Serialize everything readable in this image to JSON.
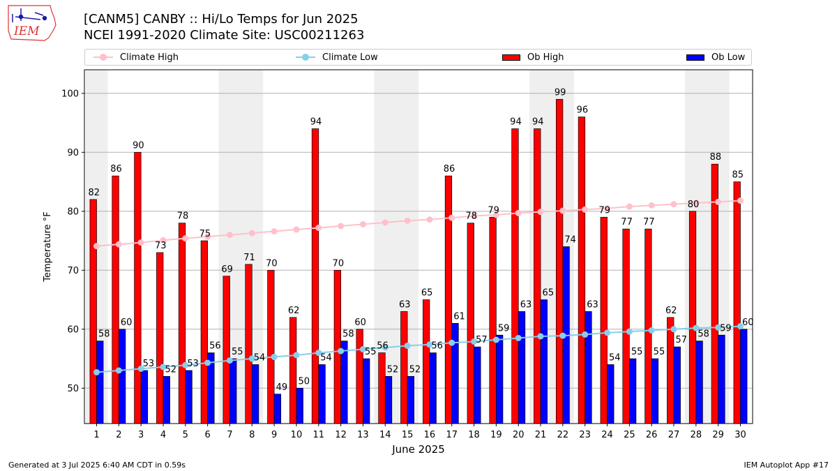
{
  "header": {
    "title": "[CANM5] CANBY :: Hi/Lo Temps for Jun 2025",
    "subtitle": "NCEI 1991-2020 Climate Site: USC00211263",
    "logo_text": "IEM"
  },
  "footer": {
    "left": "Generated at 3 Jul 2025 6:40 AM CDT in 0.59s",
    "right": "IEM Autoplot App #17"
  },
  "legend": [
    {
      "label": "Climate High",
      "kind": "line",
      "color": "#ffc0cb"
    },
    {
      "label": "Climate Low",
      "kind": "line",
      "color": "#87ceeb"
    },
    {
      "label": "Ob High",
      "kind": "bar",
      "color": "#ff0000"
    },
    {
      "label": "Ob Low",
      "kind": "bar",
      "color": "#0000ff"
    }
  ],
  "chart_data": {
    "type": "bar",
    "xlabel": "June 2025",
    "ylabel": "Temperature °F",
    "ylim": [
      44,
      104
    ],
    "yticks": [
      50,
      60,
      70,
      80,
      90,
      100
    ],
    "grid": true,
    "legend_position": "top",
    "x": [
      1,
      2,
      3,
      4,
      5,
      6,
      7,
      8,
      9,
      10,
      11,
      12,
      13,
      14,
      15,
      16,
      17,
      18,
      19,
      20,
      21,
      22,
      23,
      24,
      25,
      26,
      27,
      28,
      29,
      30
    ],
    "weekend_shaded_days": [
      1,
      7,
      8,
      14,
      15,
      21,
      22,
      28,
      29
    ],
    "series": [
      {
        "name": "Ob High",
        "kind": "bar",
        "color": "#ff0000",
        "values": [
          82,
          86,
          90,
          73,
          78,
          75,
          69,
          71,
          70,
          62,
          94,
          70,
          60,
          56,
          63,
          65,
          86,
          78,
          79,
          94,
          94,
          99,
          96,
          79,
          77,
          77,
          62,
          80,
          88,
          85
        ]
      },
      {
        "name": "Ob Low",
        "kind": "bar",
        "color": "#0000ff",
        "values": [
          58,
          60,
          53,
          52,
          53,
          56,
          55,
          54,
          49,
          50,
          54,
          58,
          55,
          52,
          52,
          56,
          61,
          57,
          59,
          63,
          65,
          74,
          63,
          54,
          55,
          55,
          57,
          58,
          59,
          60
        ]
      },
      {
        "name": "Climate High",
        "kind": "line",
        "color": "#ffc0cb",
        "values": [
          74.1,
          74.4,
          74.7,
          75.1,
          75.4,
          75.7,
          76.0,
          76.3,
          76.6,
          76.9,
          77.2,
          77.5,
          77.8,
          78.1,
          78.4,
          78.6,
          78.9,
          79.2,
          79.4,
          79.7,
          79.9,
          80.1,
          80.3,
          80.5,
          80.8,
          81.0,
          81.2,
          81.4,
          81.6,
          81.8
        ]
      },
      {
        "name": "Climate Low",
        "kind": "line",
        "color": "#87ceeb",
        "values": [
          52.7,
          53.0,
          53.3,
          53.6,
          53.9,
          54.3,
          54.7,
          55.0,
          55.3,
          55.6,
          56.0,
          56.3,
          56.6,
          56.9,
          57.2,
          57.4,
          57.7,
          57.9,
          58.2,
          58.5,
          58.8,
          58.9,
          59.1,
          59.4,
          59.6,
          59.8,
          60.0,
          60.2,
          60.3,
          60.5
        ]
      }
    ]
  }
}
